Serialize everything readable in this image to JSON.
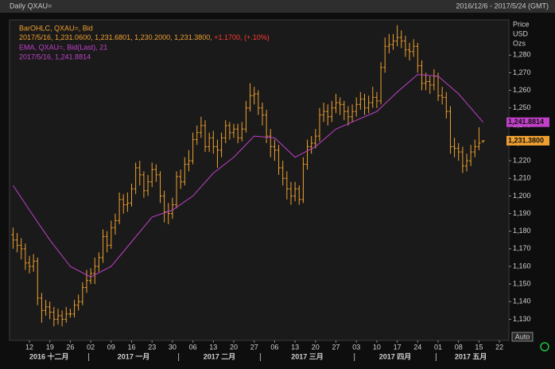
{
  "chart_data": {
    "type": "ohlc",
    "title": "Daily QXAU=",
    "date_range": "2016/12/6 - 2017/5/24 (GMT)",
    "y_label": [
      "Price",
      "USD",
      "Ozs"
    ],
    "auto_button": "Auto",
    "xlim": [
      "2016-12-05",
      "2017-05-24"
    ],
    "ylim": [
      1118,
      1300
    ],
    "yticks": [
      {
        "value": 1130,
        "label": "1,130"
      },
      {
        "value": 1140,
        "label": "1,140"
      },
      {
        "value": 1150,
        "label": "1,150"
      },
      {
        "value": 1160,
        "label": "1,160"
      },
      {
        "value": 1170,
        "label": "1,170"
      },
      {
        "value": 1180,
        "label": "1,180"
      },
      {
        "value": 1190,
        "label": "1,190"
      },
      {
        "value": 1200,
        "label": "1,200"
      },
      {
        "value": 1210,
        "label": "1,210"
      },
      {
        "value": 1220,
        "label": "1,220"
      },
      {
        "value": 1230,
        "label": "1,230"
      },
      {
        "value": 1240,
        "label": "1,240"
      },
      {
        "value": 1250,
        "label": "1,250"
      },
      {
        "value": 1260,
        "label": "1,260"
      },
      {
        "value": 1270,
        "label": "1,270"
      },
      {
        "value": 1280,
        "label": "1,280"
      }
    ],
    "xticks": [
      {
        "value": "2016-12-12",
        "label": "12"
      },
      {
        "value": "2016-12-19",
        "label": "19"
      },
      {
        "value": "2016-12-26",
        "label": "26"
      },
      {
        "value": "2017-01-02",
        "label": "02"
      },
      {
        "value": "2017-01-09",
        "label": "09"
      },
      {
        "value": "2017-01-16",
        "label": "16"
      },
      {
        "value": "2017-01-23",
        "label": "23"
      },
      {
        "value": "2017-01-30",
        "label": "30"
      },
      {
        "value": "2017-02-06",
        "label": "06"
      },
      {
        "value": "2017-02-13",
        "label": "13"
      },
      {
        "value": "2017-02-20",
        "label": "20"
      },
      {
        "value": "2017-02-27",
        "label": "27"
      },
      {
        "value": "2017-03-06",
        "label": "06"
      },
      {
        "value": "2017-03-13",
        "label": "13"
      },
      {
        "value": "2017-03-20",
        "label": "20"
      },
      {
        "value": "2017-03-27",
        "label": "27"
      },
      {
        "value": "2017-04-03",
        "label": "03"
      },
      {
        "value": "2017-04-10",
        "label": "10"
      },
      {
        "value": "2017-04-17",
        "label": "17"
      },
      {
        "value": "2017-04-24",
        "label": "24"
      },
      {
        "value": "2017-05-01",
        "label": "01"
      },
      {
        "value": "2017-05-08",
        "label": "08"
      },
      {
        "value": "2017-05-15",
        "label": "15"
      },
      {
        "value": "2017-05-22",
        "label": "22"
      }
    ],
    "months": [
      {
        "value": "2016-12",
        "label": "2016 十二月"
      },
      {
        "value": "2017-01",
        "label": "2017 一月"
      },
      {
        "value": "2017-02",
        "label": "2017 二月"
      },
      {
        "value": "2017-03",
        "label": "2017 三月"
      },
      {
        "value": "2017-04",
        "label": "2017 四月"
      },
      {
        "value": "2017-05",
        "label": "2017 五月"
      }
    ],
    "price_tags": [
      {
        "value": 1241.8814,
        "label": "1,241.8814",
        "color": "#c040c8"
      },
      {
        "value": 1231.38,
        "label": "1,231.3800",
        "color": "#f0a030"
      }
    ],
    "series": [
      {
        "name": "BarOHLC, QXAU=, Bid",
        "color": "#f0a030",
        "readout": "2017/5/16, 1,231.0600, 1,231.6801, 1,230.2000, 1,231.3800,",
        "change": "+1.1700, (+.10%)",
        "change_color": "#ff3b30",
        "x": [
          "2016-12-06",
          "2016-12-07",
          "2016-12-08",
          "2016-12-09",
          "2016-12-12",
          "2016-12-13",
          "2016-12-14",
          "2016-12-15",
          "2016-12-16",
          "2016-12-19",
          "2016-12-20",
          "2016-12-21",
          "2016-12-22",
          "2016-12-23",
          "2016-12-26",
          "2016-12-27",
          "2016-12-28",
          "2016-12-29",
          "2016-12-30",
          "2017-01-02",
          "2017-01-03",
          "2017-01-04",
          "2017-01-05",
          "2017-01-06",
          "2017-01-09",
          "2017-01-10",
          "2017-01-11",
          "2017-01-12",
          "2017-01-13",
          "2017-01-16",
          "2017-01-17",
          "2017-01-18",
          "2017-01-19",
          "2017-01-20",
          "2017-01-23",
          "2017-01-24",
          "2017-01-25",
          "2017-01-26",
          "2017-01-27",
          "2017-01-30",
          "2017-01-31",
          "2017-02-01",
          "2017-02-02",
          "2017-02-03",
          "2017-02-06",
          "2017-02-07",
          "2017-02-08",
          "2017-02-09",
          "2017-02-10",
          "2017-02-13",
          "2017-02-14",
          "2017-02-15",
          "2017-02-16",
          "2017-02-17",
          "2017-02-20",
          "2017-02-21",
          "2017-02-22",
          "2017-02-23",
          "2017-02-24",
          "2017-02-27",
          "2017-02-28",
          "2017-03-01",
          "2017-03-02",
          "2017-03-03",
          "2017-03-06",
          "2017-03-07",
          "2017-03-08",
          "2017-03-09",
          "2017-03-10",
          "2017-03-13",
          "2017-03-14",
          "2017-03-15",
          "2017-03-16",
          "2017-03-17",
          "2017-03-20",
          "2017-03-21",
          "2017-03-22",
          "2017-03-23",
          "2017-03-24",
          "2017-03-27",
          "2017-03-28",
          "2017-03-29",
          "2017-03-30",
          "2017-03-31",
          "2017-04-03",
          "2017-04-04",
          "2017-04-05",
          "2017-04-06",
          "2017-04-07",
          "2017-04-10",
          "2017-04-11",
          "2017-04-12",
          "2017-04-13",
          "2017-04-14",
          "2017-04-17",
          "2017-04-18",
          "2017-04-19",
          "2017-04-20",
          "2017-04-21",
          "2017-04-24",
          "2017-04-25",
          "2017-04-26",
          "2017-04-27",
          "2017-04-28",
          "2017-05-01",
          "2017-05-02",
          "2017-05-03",
          "2017-05-04",
          "2017-05-05",
          "2017-05-08",
          "2017-05-09",
          "2017-05-10",
          "2017-05-11",
          "2017-05-12",
          "2017-05-15",
          "2017-05-16"
        ],
        "ohlc": [
          [
            1178,
            1182,
            1170,
            1175
          ],
          [
            1175,
            1179,
            1168,
            1172
          ],
          [
            1172,
            1176,
            1164,
            1170
          ],
          [
            1170,
            1173,
            1158,
            1162
          ],
          [
            1162,
            1166,
            1156,
            1160
          ],
          [
            1160,
            1167,
            1157,
            1163
          ],
          [
            1163,
            1165,
            1138,
            1142
          ],
          [
            1142,
            1145,
            1128,
            1135
          ],
          [
            1135,
            1141,
            1132,
            1137
          ],
          [
            1137,
            1140,
            1130,
            1134
          ],
          [
            1134,
            1137,
            1126,
            1130
          ],
          [
            1130,
            1136,
            1127,
            1132
          ],
          [
            1132,
            1135,
            1126,
            1130
          ],
          [
            1130,
            1137,
            1128,
            1133
          ],
          [
            1133,
            1136,
            1131,
            1133
          ],
          [
            1133,
            1141,
            1131,
            1138
          ],
          [
            1138,
            1144,
            1135,
            1140
          ],
          [
            1140,
            1151,
            1138,
            1148
          ],
          [
            1148,
            1158,
            1145,
            1152
          ],
          [
            1152,
            1159,
            1150,
            1156
          ],
          [
            1156,
            1165,
            1150,
            1160
          ],
          [
            1160,
            1168,
            1157,
            1165
          ],
          [
            1165,
            1181,
            1162,
            1177
          ],
          [
            1177,
            1180,
            1168,
            1172
          ],
          [
            1172,
            1186,
            1170,
            1182
          ],
          [
            1182,
            1190,
            1178,
            1186
          ],
          [
            1186,
            1202,
            1184,
            1198
          ],
          [
            1198,
            1201,
            1190,
            1195
          ],
          [
            1195,
            1202,
            1191,
            1196
          ],
          [
            1196,
            1207,
            1194,
            1204
          ],
          [
            1204,
            1219,
            1201,
            1216
          ],
          [
            1216,
            1220,
            1206,
            1212
          ],
          [
            1212,
            1214,
            1199,
            1203
          ],
          [
            1203,
            1212,
            1200,
            1208
          ],
          [
            1208,
            1219,
            1205,
            1215
          ],
          [
            1215,
            1218,
            1208,
            1212
          ],
          [
            1212,
            1214,
            1196,
            1200
          ],
          [
            1200,
            1203,
            1185,
            1191
          ],
          [
            1191,
            1196,
            1184,
            1190
          ],
          [
            1190,
            1199,
            1187,
            1195
          ],
          [
            1195,
            1214,
            1193,
            1211
          ],
          [
            1211,
            1215,
            1204,
            1208
          ],
          [
            1208,
            1222,
            1206,
            1218
          ],
          [
            1218,
            1226,
            1214,
            1220
          ],
          [
            1220,
            1236,
            1218,
            1232
          ],
          [
            1232,
            1240,
            1229,
            1236
          ],
          [
            1236,
            1245,
            1233,
            1240
          ],
          [
            1240,
            1243,
            1225,
            1228
          ],
          [
            1228,
            1236,
            1225,
            1233
          ],
          [
            1233,
            1237,
            1224,
            1228
          ],
          [
            1228,
            1232,
            1216,
            1226
          ],
          [
            1226,
            1236,
            1222,
            1233
          ],
          [
            1233,
            1243,
            1230,
            1240
          ],
          [
            1240,
            1242,
            1232,
            1236
          ],
          [
            1236,
            1241,
            1233,
            1238
          ],
          [
            1238,
            1241,
            1230,
            1233
          ],
          [
            1233,
            1242,
            1231,
            1238
          ],
          [
            1238,
            1254,
            1236,
            1250
          ],
          [
            1250,
            1264,
            1248,
            1257
          ],
          [
            1257,
            1262,
            1252,
            1258
          ],
          [
            1258,
            1260,
            1246,
            1250
          ],
          [
            1250,
            1253,
            1240,
            1246
          ],
          [
            1246,
            1249,
            1230,
            1234
          ],
          [
            1234,
            1238,
            1222,
            1228
          ],
          [
            1228,
            1232,
            1220,
            1226
          ],
          [
            1226,
            1229,
            1212,
            1216
          ],
          [
            1216,
            1220,
            1206,
            1210
          ],
          [
            1210,
            1214,
            1198,
            1204
          ],
          [
            1204,
            1208,
            1195,
            1200
          ],
          [
            1200,
            1208,
            1197,
            1204
          ],
          [
            1204,
            1206,
            1195,
            1198
          ],
          [
            1198,
            1222,
            1196,
            1218
          ],
          [
            1218,
            1232,
            1215,
            1228
          ],
          [
            1228,
            1234,
            1224,
            1230
          ],
          [
            1230,
            1238,
            1227,
            1234
          ],
          [
            1234,
            1250,
            1231,
            1246
          ],
          [
            1246,
            1253,
            1242,
            1248
          ],
          [
            1248,
            1252,
            1240,
            1245
          ],
          [
            1245,
            1254,
            1242,
            1250
          ],
          [
            1250,
            1258,
            1247,
            1253
          ],
          [
            1253,
            1256,
            1246,
            1252
          ],
          [
            1252,
            1254,
            1243,
            1248
          ],
          [
            1248,
            1251,
            1240,
            1245
          ],
          [
            1245,
            1252,
            1242,
            1248
          ],
          [
            1248,
            1256,
            1245,
            1252
          ],
          [
            1252,
            1259,
            1249,
            1255
          ],
          [
            1255,
            1258,
            1246,
            1250
          ],
          [
            1250,
            1257,
            1247,
            1253
          ],
          [
            1253,
            1262,
            1250,
            1256
          ],
          [
            1256,
            1259,
            1250,
            1254
          ],
          [
            1254,
            1276,
            1252,
            1273
          ],
          [
            1273,
            1290,
            1270,
            1285
          ],
          [
            1285,
            1292,
            1281,
            1286
          ],
          [
            1286,
            1292,
            1283,
            1288
          ],
          [
            1288,
            1297,
            1285,
            1290
          ],
          [
            1290,
            1294,
            1284,
            1288
          ],
          [
            1288,
            1291,
            1279,
            1283
          ],
          [
            1283,
            1287,
            1277,
            1282
          ],
          [
            1282,
            1289,
            1279,
            1285
          ],
          [
            1285,
            1287,
            1270,
            1274
          ],
          [
            1274,
            1277,
            1260,
            1264
          ],
          [
            1264,
            1270,
            1260,
            1265
          ],
          [
            1265,
            1268,
            1258,
            1263
          ],
          [
            1263,
            1272,
            1260,
            1268
          ],
          [
            1268,
            1270,
            1254,
            1257
          ],
          [
            1257,
            1262,
            1252,
            1256
          ],
          [
            1256,
            1259,
            1244,
            1248
          ],
          [
            1248,
            1251,
            1224,
            1228
          ],
          [
            1228,
            1233,
            1222,
            1227
          ],
          [
            1227,
            1230,
            1220,
            1225
          ],
          [
            1225,
            1228,
            1213,
            1217
          ],
          [
            1217,
            1224,
            1214,
            1220
          ],
          [
            1220,
            1229,
            1217,
            1225
          ],
          [
            1225,
            1232,
            1222,
            1228
          ],
          [
            1228,
            1239,
            1226,
            1230
          ],
          [
            1231.06,
            1231.68,
            1230.2,
            1231.38
          ]
        ]
      },
      {
        "name": "EMA, QXAU=, Bid(Last), 21",
        "color": "#c040c8",
        "type": "line",
        "readout": "2017/5/16, 1,241.8814",
        "x": [
          "2016-12-06",
          "2016-12-12",
          "2016-12-19",
          "2016-12-26",
          "2017-01-02",
          "2017-01-09",
          "2017-01-16",
          "2017-01-23",
          "2017-01-30",
          "2017-02-06",
          "2017-02-13",
          "2017-02-20",
          "2017-02-27",
          "2017-03-06",
          "2017-03-13",
          "2017-03-20",
          "2017-03-27",
          "2017-04-03",
          "2017-04-10",
          "2017-04-17",
          "2017-04-24",
          "2017-05-01",
          "2017-05-08",
          "2017-05-16"
        ],
        "values": [
          1206,
          1192,
          1175,
          1160,
          1154,
          1160,
          1174,
          1188,
          1192,
          1200,
          1213,
          1222,
          1234,
          1233,
          1222,
          1228,
          1238,
          1243,
          1248,
          1259,
          1269,
          1268,
          1258,
          1241.8814
        ]
      }
    ]
  }
}
